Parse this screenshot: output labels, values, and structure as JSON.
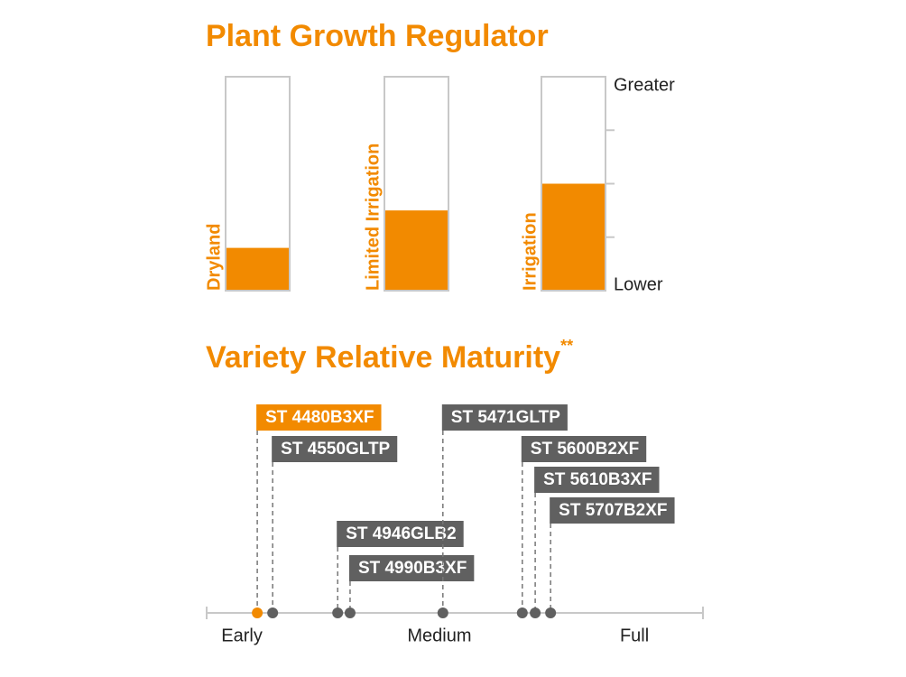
{
  "chart_data": [
    {
      "type": "bar",
      "title": "Plant Growth Regulator",
      "categories": [
        "Dryland",
        "Limited Irrigation",
        "Irrigation"
      ],
      "values": [
        0.8,
        1.5,
        2.0
      ],
      "color": "#f28a00",
      "ylim": [
        0,
        4
      ],
      "yticks": [
        0,
        1,
        2,
        3,
        4
      ],
      "ylim_labels": [
        "Lower",
        "Greater"
      ]
    },
    {
      "type": "scatter",
      "title": "Variety Relative Maturity",
      "title_mark": "**",
      "series": [
        {
          "name": "ST 4480B3XF",
          "color": "#f28a00",
          "values": [
            10.2
          ]
        },
        {
          "name": "ST 4550GLTP",
          "color": "#606060",
          "values": [
            13.3
          ]
        },
        {
          "name": "ST 4946GLB2",
          "color": "#606060",
          "values": [
            26.4
          ]
        },
        {
          "name": "ST 4990B3XF",
          "color": "#606060",
          "values": [
            28.9
          ]
        },
        {
          "name": "ST 5471GLTP",
          "color": "#606060",
          "values": [
            47.6
          ]
        },
        {
          "name": "ST 5600B2XF",
          "color": "#606060",
          "values": [
            63.6
          ]
        },
        {
          "name": "ST 5610B3XF",
          "color": "#606060",
          "values": [
            66.2
          ]
        },
        {
          "name": "ST 5707B2XF",
          "color": "#606060",
          "values": [
            69.3
          ]
        }
      ],
      "xlim": [
        0,
        100
      ],
      "xticks": [
        {
          "value": 7.1,
          "label": "Early"
        },
        {
          "value": 46.9,
          "label": "Medium"
        },
        {
          "value": 86.2,
          "label": "Full"
        }
      ]
    }
  ]
}
